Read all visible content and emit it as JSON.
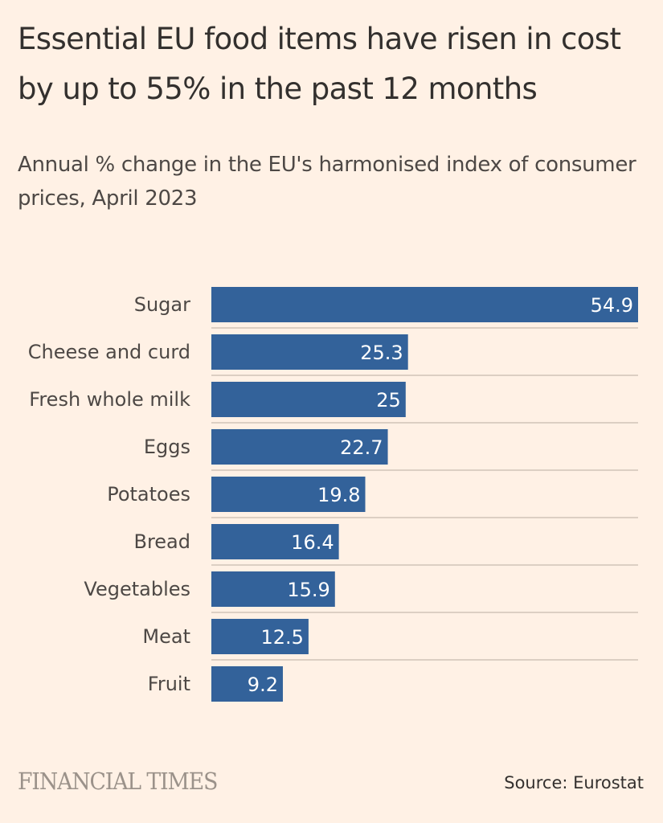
{
  "header": {
    "title": "Essential EU food items have risen in cost by up to 55% in the past 12 months",
    "subtitle": "Annual % change in the EU's harmonised index of consumer prices, April 2023"
  },
  "footer": {
    "brand": "FINANCIAL TIMES",
    "source": "Source: Eurostat"
  },
  "colors": {
    "background": "#FFF1E5",
    "bar": "#33629A",
    "gridline": "#DCCFC3",
    "label_text": "#4d4845",
    "value_text": "#ffffff"
  },
  "chart_data": {
    "type": "bar",
    "orientation": "horizontal",
    "title": "Essential EU food items have risen in cost by up to 55% in the past 12 months",
    "subtitle": "Annual % change in the EU's harmonised index of consumer prices, April 2023",
    "xlabel": "",
    "ylabel": "",
    "categories": [
      "Sugar",
      "Cheese and curd",
      "Fresh whole milk",
      "Eggs",
      "Potatoes",
      "Bread",
      "Vegetables",
      "Meat",
      "Fruit"
    ],
    "values": [
      54.9,
      25.3,
      25,
      22.7,
      19.8,
      16.4,
      15.9,
      12.5,
      9.2
    ],
    "value_labels": [
      "54.9",
      "25.3",
      "25",
      "22.7",
      "19.8",
      "16.4",
      "15.9",
      "12.5",
      "9.2"
    ],
    "xlim": [
      0,
      54.9
    ],
    "grid": true,
    "legend": "none",
    "source": "Source: Eurostat"
  }
}
